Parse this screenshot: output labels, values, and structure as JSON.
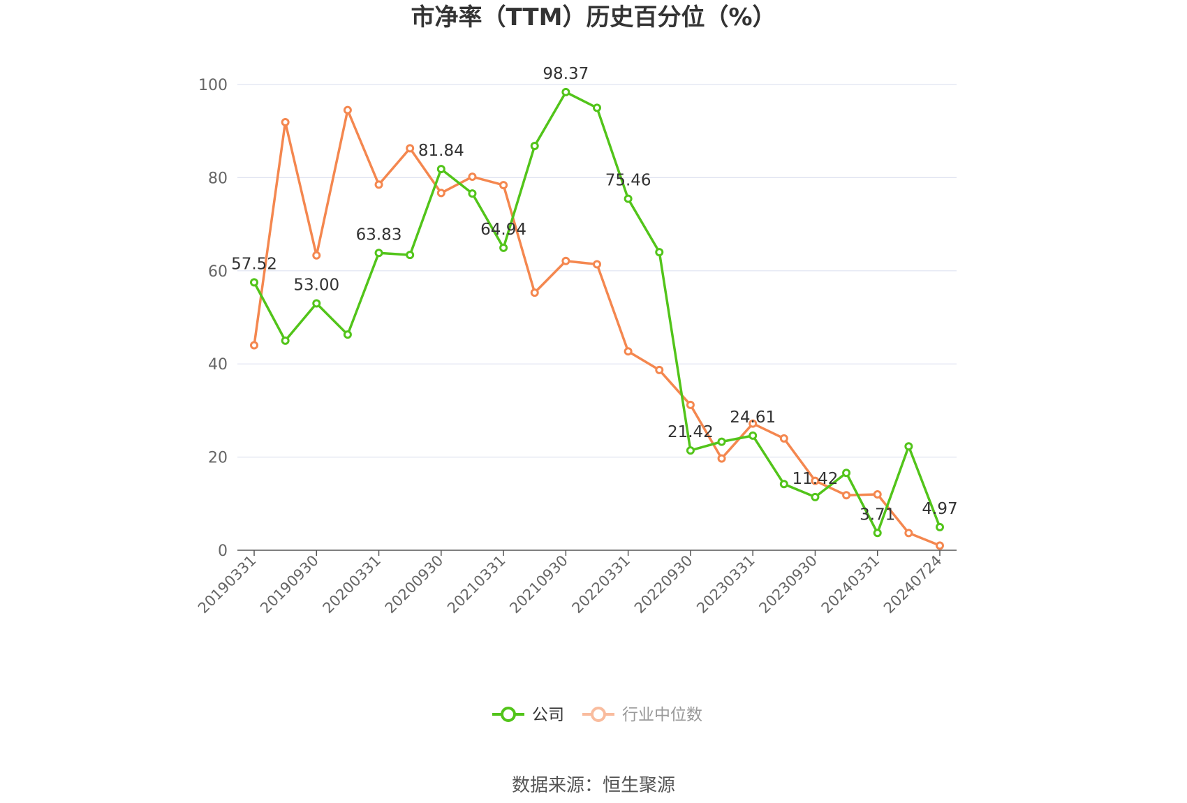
{
  "chart_data": {
    "type": "line",
    "title": "市净率（TTM）历史百分位（%）",
    "source": "数据来源：恒生聚源",
    "ylim": [
      0,
      100
    ],
    "yticks": [
      "0",
      "20",
      "40",
      "60",
      "80",
      "100"
    ],
    "x_tick_labels": [
      "20190331",
      "20190930",
      "20200331",
      "20200930",
      "20210331",
      "20210930",
      "20220331",
      "20220930",
      "20230331",
      "20230930",
      "20240331",
      "20240724"
    ],
    "grid": true,
    "legend_position": "bottom",
    "x": [
      "20190331",
      "20190630",
      "20190930",
      "20191231",
      "20200331",
      "20200630",
      "20200930",
      "20201231",
      "20210331",
      "20210630",
      "20210930",
      "20211231",
      "20220331",
      "20220630",
      "20220930",
      "20221231",
      "20230331",
      "20230630",
      "20230930",
      "20231231",
      "20240331",
      "20240630",
      "20240724"
    ],
    "series": [
      {
        "name": "公司",
        "color": "#52c41a",
        "values": [
          57.52,
          45.0,
          53.0,
          46.3,
          63.83,
          63.4,
          81.84,
          76.6,
          64.94,
          86.8,
          98.37,
          95.0,
          75.46,
          64.0,
          21.42,
          23.3,
          24.61,
          14.2,
          11.42,
          16.6,
          3.71,
          22.3,
          4.97
        ],
        "labels": [
          "57.52",
          "",
          "53.00",
          "",
          "63.83",
          "",
          "81.84",
          "",
          "64.94",
          "",
          "98.37",
          "",
          "75.46",
          "",
          "21.42",
          "",
          "24.61",
          "",
          "11.42",
          "",
          "3.71",
          "",
          "4.97"
        ]
      },
      {
        "name": "行业中位数",
        "color": "#f4874f",
        "legend_color": "#f9bc9e",
        "values": [
          44.0,
          91.9,
          63.3,
          94.5,
          78.5,
          86.3,
          76.7,
          80.2,
          78.4,
          55.3,
          62.1,
          61.4,
          42.7,
          38.7,
          31.2,
          19.7,
          27.2,
          24.0,
          14.9,
          11.8,
          12.0,
          3.7,
          1.0
        ]
      }
    ]
  }
}
